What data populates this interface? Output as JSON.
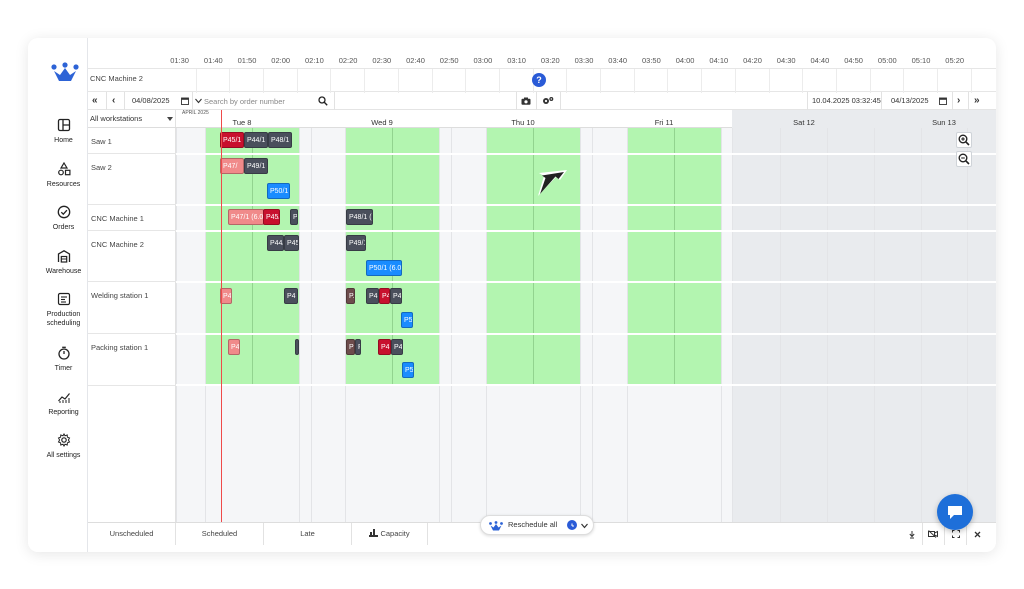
{
  "sidebar": {
    "items": [
      {
        "label": "Home",
        "icon": "layout-icon"
      },
      {
        "label": "Resources",
        "icon": "shapes-icon"
      },
      {
        "label": "Orders",
        "icon": "check-circle-icon"
      },
      {
        "label": "Warehouse",
        "icon": "warehouse-icon"
      },
      {
        "label": "Production scheduling",
        "line1": "Production",
        "line2": "scheduling",
        "icon": "schedule-icon",
        "active": true
      },
      {
        "label": "Timer",
        "icon": "stopwatch-icon"
      },
      {
        "label": "Reporting",
        "icon": "chart-icon"
      },
      {
        "label": "All settings",
        "icon": "gear-icon"
      }
    ]
  },
  "top_timeline": {
    "hours": [
      "01:30",
      "01:40",
      "01:50",
      "02:00",
      "02:10",
      "02:20",
      "02:30",
      "02:40",
      "02:50",
      "03:00",
      "03:10",
      "03:20",
      "03:30",
      "03:40",
      "03:50",
      "04:00",
      "04:10",
      "04:20",
      "04:30",
      "04:40",
      "04:50",
      "05:00",
      "05:10",
      "05:20"
    ],
    "row_label": "CNC Machine 2",
    "help": "?"
  },
  "toolbar": {
    "start_date": "04/08/2025",
    "search_placeholder": "Search by order number",
    "current_datetime": "10.04.2025 03:32:45",
    "end_date": "04/13/2025"
  },
  "gantt": {
    "filter": "All workstations",
    "month": "APRIL 2025",
    "days": [
      "Tue 8",
      "Wed 9",
      "Thu 10",
      "Fri 11",
      "Sat 12",
      "Sun 13"
    ],
    "workstations": [
      "Saw 1",
      "Saw 2",
      "CNC Machine 1",
      "CNC Machine 2",
      "Welding station 1",
      "Packing station 1"
    ],
    "tasks": [
      {
        "label": "P45/1",
        "color": "#c8102e"
      },
      {
        "label": "P44/1",
        "color": "#4a4f5c"
      },
      {
        "label": "P48/1",
        "color": "#4a4f5c"
      },
      {
        "label": "P47/",
        "color": "#f08a8a"
      },
      {
        "label": "P49/1",
        "color": "#4a4f5c"
      },
      {
        "label": "P50/1",
        "color": "#1a8cff"
      },
      {
        "label": "P47/1 (6.0",
        "color": "#f08a8a"
      },
      {
        "label": "P45/",
        "color": "#c8102e"
      },
      {
        "label": "P",
        "color": "#4a4f5c"
      },
      {
        "label": "P48/1 (",
        "color": "#4a4f5c"
      },
      {
        "label": "P44/",
        "color": "#4a4f5c"
      },
      {
        "label": "P45",
        "color": "#4a4f5c"
      },
      {
        "label": "P49/1",
        "color": "#4a4f5c"
      },
      {
        "label": "P50/1 (6.0",
        "color": "#1a8cff"
      },
      {
        "label": "P4",
        "color": "#f08a8a"
      },
      {
        "label": "P4",
        "color": "#4a4f5c"
      },
      {
        "label": "P.",
        "color": "#6d4c4c"
      },
      {
        "label": "P4",
        "color": "#4a4f5c"
      },
      {
        "label": "P4",
        "color": "#c8102e"
      },
      {
        "label": "P4",
        "color": "#4a4f5c"
      },
      {
        "label": "P5",
        "color": "#1a8cff"
      },
      {
        "label": "P4",
        "color": "#f08a8a"
      },
      {
        "label": "P.",
        "color": "#4a4f5c"
      },
      {
        "label": "P",
        "color": "#6d4c4c"
      },
      {
        "label": "P4",
        "color": "#4a4f5c"
      },
      {
        "label": "P4",
        "color": "#c8102e"
      },
      {
        "label": "P4",
        "color": "#4a4f5c"
      },
      {
        "label": "P5",
        "color": "#1a8cff"
      }
    ]
  },
  "bottom_tabs": [
    "Unscheduled",
    "Scheduled",
    "Late",
    "Capacity"
  ],
  "reschedule_label": "Reschedule all"
}
